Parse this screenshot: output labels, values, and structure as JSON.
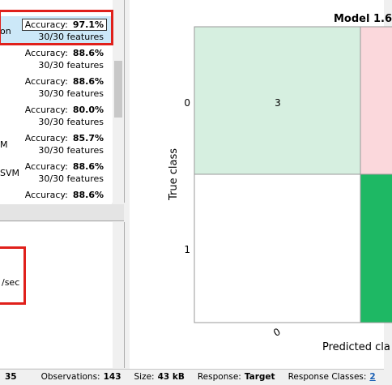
{
  "model_list": [
    {
      "name": "on",
      "accuracy_label": "Accuracy:",
      "accuracy": "97.1%",
      "features": "30/30 features"
    },
    {
      "accuracy_label": "Accuracy:",
      "accuracy": "88.6%",
      "features": "30/30 features"
    },
    {
      "accuracy_label": "Accuracy:",
      "accuracy": "88.6%",
      "features": "30/30 features"
    },
    {
      "accuracy_label": "Accuracy:",
      "accuracy": "80.0%",
      "features": "30/30 features"
    },
    {
      "name": "M",
      "accuracy_label": "Accuracy:",
      "accuracy": "85.7%",
      "features": "30/30 features"
    },
    {
      "name": "SVM",
      "accuracy_label": "Accuracy:",
      "accuracy": "88.6%",
      "features": "30/30 features"
    },
    {
      "accuracy_label": "Accuracy:",
      "accuracy": "88.6%"
    }
  ],
  "details": {
    "text": "/sec"
  },
  "plot": {
    "title": "Model 1.6",
    "y_label": "True class",
    "x_label": "Predicted cla",
    "y_ticks": [
      "0",
      "1"
    ],
    "x_ticks": [
      "0"
    ],
    "cell_value": "3"
  },
  "status": {
    "first": "35",
    "items": [
      {
        "label": "Observations:",
        "value": "143"
      },
      {
        "label": "Size:",
        "value": "43 kB"
      },
      {
        "label": "Response:",
        "value": "Target"
      },
      {
        "label": "Response Classes:",
        "value": "2"
      }
    ]
  }
}
